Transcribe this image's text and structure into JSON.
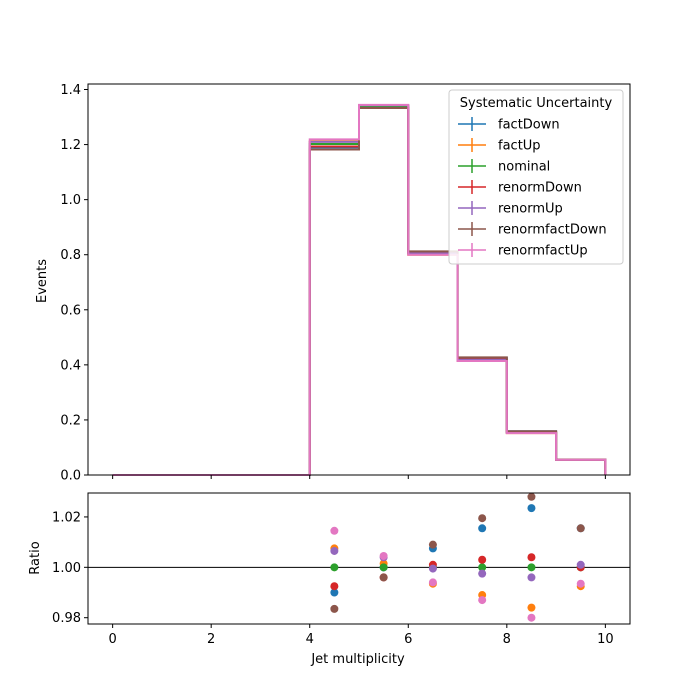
{
  "chart_data": {
    "type": "histogram-step",
    "x_edges": [
      0,
      1,
      2,
      3,
      4,
      5,
      6,
      7,
      8,
      9,
      10
    ],
    "bin_centers": [
      4.5,
      5.5,
      6.5,
      7.5,
      8.5,
      9.5
    ],
    "main": {
      "ylabel": "Events",
      "ylim": [
        0,
        1.42
      ],
      "yticks": [
        0.0,
        0.2,
        0.4,
        0.6,
        0.8,
        1.0,
        1.2,
        1.4
      ],
      "ytick_labels": [
        "0.0",
        "0.2",
        "0.4",
        "0.6",
        "0.8",
        "1.0",
        "1.2",
        "1.4"
      ]
    },
    "ratio": {
      "ylabel": "Ratio",
      "ylim": [
        0.9775,
        1.0295
      ],
      "yticks": [
        0.98,
        1.0,
        1.02
      ],
      "ytick_labels": [
        "0.98",
        "1.00",
        "1.02"
      ],
      "reference_line": 1.0
    },
    "xlabel": "Jet multiplicity",
    "xlim": [
      -0.5,
      10.5
    ],
    "xticks": [
      0,
      2,
      4,
      6,
      8,
      10
    ],
    "xtick_labels": [
      "0",
      "2",
      "4",
      "6",
      "8",
      "10"
    ],
    "legend": {
      "title": "Systematic Uncertainty",
      "placement": "top-right"
    },
    "series": [
      {
        "name": "factDown",
        "color": "#1f77b4",
        "values": [
          0,
          0,
          0,
          0,
          1.19,
          1.335,
          0.811,
          0.426,
          0.159,
          0.0563
        ],
        "ratio": [
          0.99,
          1.0,
          1.0075,
          1.0155,
          1.0235,
          1.0155
        ]
      },
      {
        "name": "factUp",
        "color": "#ff7f0e",
        "values": [
          0,
          0,
          0,
          0,
          1.211,
          1.34,
          0.8,
          0.414,
          0.152,
          0.0551
        ],
        "ratio": [
          1.0075,
          1.0015,
          0.9935,
          0.989,
          0.984,
          0.9925
        ]
      },
      {
        "name": "nominal",
        "color": "#2ca02c",
        "values": [
          0,
          0,
          0,
          0,
          1.202,
          1.338,
          0.805,
          0.419,
          0.155,
          0.0555
        ],
        "ratio": [
          1.0,
          1.0,
          1.0,
          1.0,
          1.0,
          1.0
        ]
      },
      {
        "name": "renormDown",
        "color": "#d62728",
        "values": [
          0,
          0,
          0,
          0,
          1.193,
          1.333,
          0.806,
          0.42,
          0.156,
          0.0555
        ],
        "ratio": [
          0.9925,
          0.996,
          1.001,
          1.003,
          1.004,
          1.0
        ]
      },
      {
        "name": "renormUp",
        "color": "#9467bd",
        "values": [
          0,
          0,
          0,
          0,
          1.21,
          1.343,
          0.805,
          0.418,
          0.154,
          0.0556
        ],
        "ratio": [
          1.0065,
          1.004,
          0.9995,
          0.9975,
          0.996,
          1.001
        ]
      },
      {
        "name": "renormfactDown",
        "color": "#8c564b",
        "values": [
          0,
          0,
          0,
          0,
          1.182,
          1.333,
          0.812,
          0.427,
          0.159,
          0.0564
        ],
        "ratio": [
          0.9835,
          0.996,
          1.009,
          1.0195,
          1.028,
          1.0155
        ]
      },
      {
        "name": "renormfactUp",
        "color": "#e377c2",
        "values": [
          0,
          0,
          0,
          0,
          1.219,
          1.344,
          0.8,
          0.414,
          0.152,
          0.0552
        ],
        "ratio": [
          1.0145,
          1.0045,
          0.994,
          0.987,
          0.98,
          0.9935
        ]
      }
    ]
  }
}
